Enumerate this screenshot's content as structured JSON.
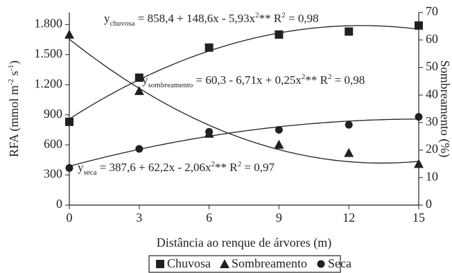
{
  "chart_data": {
    "type": "scatter",
    "x_label": "Distância ao renque de árvores (m)",
    "y_label": [
      {
        "text": "RFA (mmol m"
      },
      {
        "text": "-2",
        "style": "sup"
      },
      {
        "text": " s"
      },
      {
        "text": "-1",
        "style": "sup"
      },
      {
        "text": ")"
      }
    ],
    "y2_label": "Sombreamento (%)",
    "x": [
      0,
      3,
      6,
      9,
      12,
      15
    ],
    "xlim": [
      0,
      15
    ],
    "xticks": [
      0,
      3,
      6,
      9,
      12,
      15
    ],
    "ylim": [
      0,
      1920
    ],
    "yticks": [
      0,
      300,
      600,
      900,
      {
        "value": 1200,
        "label": "1.200"
      },
      {
        "value": 1500,
        "label": "1.500"
      },
      {
        "value": 1800,
        "label": "1.800"
      }
    ],
    "y2lim": [
      0,
      70
    ],
    "y2ticks": [
      0,
      10,
      20,
      30,
      40,
      50,
      60,
      70
    ],
    "series": [
      {
        "name": "Chuvosa",
        "color": "#231f20",
        "marker": "square",
        "values": [
          830,
          1270,
          1570,
          1700,
          1730,
          1790
        ],
        "fit": [
          858.4,
          148.6,
          -5.93
        ],
        "annotation": [
          {
            "text": "y"
          },
          {
            "text": "chuvosa",
            "style": "sub"
          },
          {
            "text": " = 858,4 + 148,6x - 5,93x"
          },
          {
            "text": "2",
            "style": "sup"
          },
          {
            "text": "**  R"
          },
          {
            "text": "2",
            "style": "sup"
          },
          {
            "text": " = 0,98"
          }
        ]
      },
      {
        "name": "Sombreamento",
        "color": "#231f20",
        "marker": "triangle",
        "axis": "y2",
        "values": [
          62,
          41.5,
          26,
          22,
          19,
          15
        ],
        "fit": [
          60.3,
          -6.71,
          0.25
        ],
        "annotation": [
          {
            "text": "y"
          },
          {
            "text": "sombreamento",
            "style": "sub"
          },
          {
            "text": " = 60,3 - 6,71x + 0,25x"
          },
          {
            "text": "2",
            "style": "sup"
          },
          {
            "text": "**  R"
          },
          {
            "text": "2",
            "style": "sup"
          },
          {
            "text": " = 0,98"
          }
        ]
      },
      {
        "name": "Seca",
        "color": "#231f20",
        "marker": "circle",
        "values": [
          370,
          560,
          730,
          750,
          800,
          880
        ],
        "fit": [
          387.6,
          62.2,
          -2.06
        ],
        "annotation": [
          {
            "text": "y"
          },
          {
            "text": "seca",
            "style": "sub"
          },
          {
            "text": " = 387,6 + 62,2x - 2,06x"
          },
          {
            "text": "2",
            "style": "sup"
          },
          {
            "text": "**  R"
          },
          {
            "text": "2",
            "style": "sup"
          },
          {
            "text": " = 0,97"
          }
        ]
      }
    ]
  }
}
